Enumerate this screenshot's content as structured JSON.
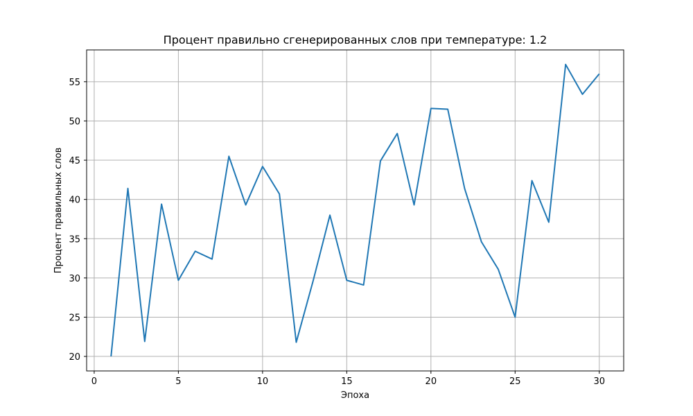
{
  "chart_data": {
    "type": "line",
    "title": "Процент правильно сгенерированных слов при температуре: 1.2",
    "xlabel": "Эпоха",
    "ylabel": "Процент правильных слов",
    "xlim": [
      -0.45,
      31.45
    ],
    "ylim": [
      18.15,
      59.05
    ],
    "xticks": [
      0,
      5,
      10,
      15,
      20,
      25,
      30
    ],
    "yticks": [
      20,
      25,
      30,
      35,
      40,
      45,
      50,
      55
    ],
    "grid": true,
    "series_color": "#1f77b4",
    "x": [
      1,
      2,
      3,
      4,
      5,
      6,
      7,
      8,
      9,
      10,
      11,
      12,
      13,
      14,
      15,
      16,
      17,
      18,
      19,
      20,
      21,
      22,
      23,
      24,
      25,
      26,
      27,
      28,
      29,
      30
    ],
    "series": [
      {
        "values": [
          20.0,
          41.4,
          21.9,
          39.4,
          29.7,
          33.4,
          32.4,
          45.5,
          39.3,
          44.2,
          40.7,
          21.8,
          29.6,
          38.0,
          29.7,
          29.1,
          44.9,
          48.4,
          39.3,
          51.6,
          51.5,
          41.4,
          34.6,
          31.1,
          25.0,
          42.4,
          37.1,
          57.2,
          53.4,
          56.0
        ]
      }
    ]
  }
}
